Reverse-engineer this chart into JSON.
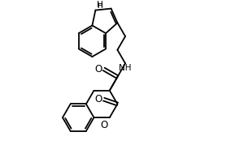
{
  "line_color": "#000000",
  "bg_color": "#ffffff",
  "line_width": 1.3,
  "font_size": 7.5,
  "nh_label": "NH",
  "h_label": "H",
  "o_label": "O"
}
